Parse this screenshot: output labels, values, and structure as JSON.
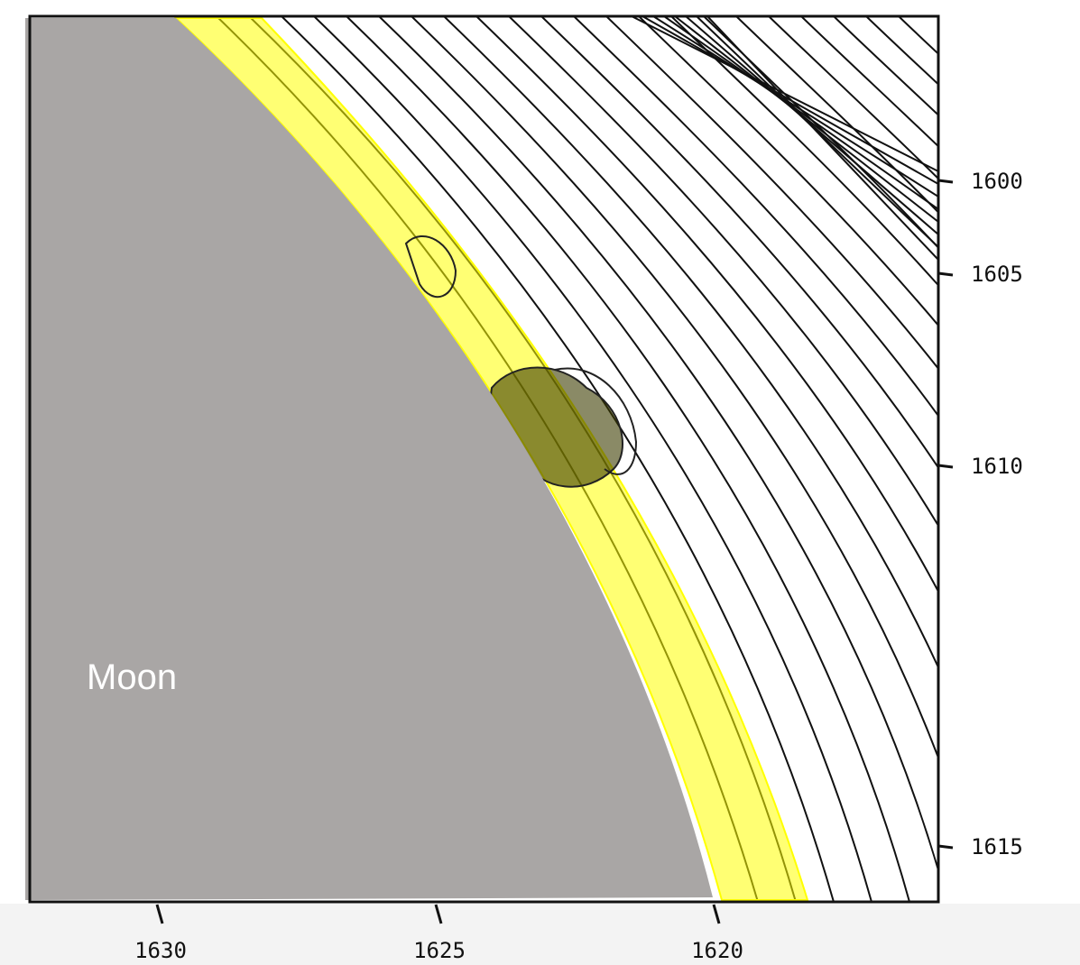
{
  "moon_label": "Moon",
  "right_ticks": [
    "1600",
    "1605",
    "1610",
    "1615"
  ],
  "bottom_ticks": [
    "1630",
    "1625",
    "1620"
  ]
}
